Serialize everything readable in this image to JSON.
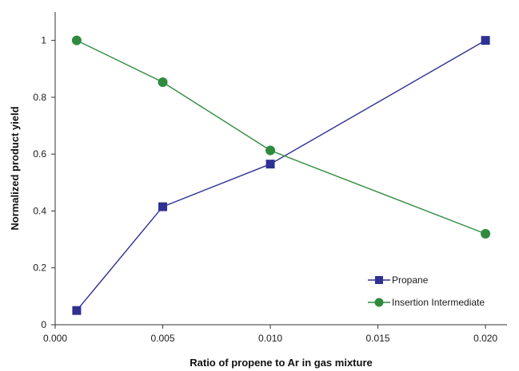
{
  "chart_data": {
    "type": "line",
    "title": "",
    "xlabel": "Ratio of propene to Ar in gas mixture",
    "ylabel": "Normalized product yield",
    "xlim": [
      0,
      0.021
    ],
    "ylim": [
      0,
      1.1
    ],
    "x_ticks": [
      {
        "value": 0.0,
        "label": "0.000"
      },
      {
        "value": 0.005,
        "label": "0.005"
      },
      {
        "value": 0.01,
        "label": "0.010"
      },
      {
        "value": 0.015,
        "label": "0.015"
      },
      {
        "value": 0.02,
        "label": "0.020"
      }
    ],
    "y_ticks": [
      {
        "value": 0,
        "label": "0"
      },
      {
        "value": 0.2,
        "label": "0.2"
      },
      {
        "value": 0.4,
        "label": "0.4"
      },
      {
        "value": 0.6,
        "label": "0.6"
      },
      {
        "value": 0.8,
        "label": "0.8"
      },
      {
        "value": 1,
        "label": "1"
      }
    ],
    "grid": false,
    "legend_position": "bottom-right",
    "series": [
      {
        "name": "Propane",
        "color": "#2e3192",
        "marker": "square",
        "x": [
          0.001,
          0.005,
          0.01,
          0.02
        ],
        "y": [
          0.05,
          0.415,
          0.565,
          1.0
        ]
      },
      {
        "name": "Insertion Intermediate",
        "color": "#2e8b3e",
        "marker": "circle",
        "x": [
          0.001,
          0.005,
          0.01,
          0.02
        ],
        "y": [
          1.0,
          0.853,
          0.613,
          0.32
        ]
      }
    ]
  }
}
